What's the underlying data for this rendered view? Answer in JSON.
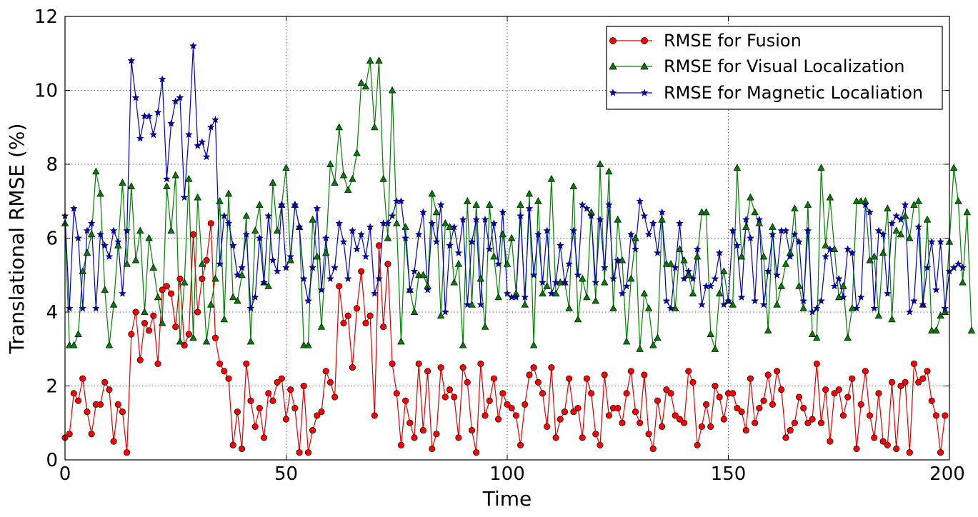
{
  "chart_data": {
    "type": "line",
    "title": "",
    "xlabel": "Time",
    "ylabel": "Translational RMSE (%)",
    "xlim": [
      0,
      200
    ],
    "ylim": [
      0,
      12
    ],
    "x_ticks": [
      0,
      50,
      100,
      150,
      200
    ],
    "y_ticks": [
      0,
      2,
      4,
      6,
      8,
      10,
      12
    ],
    "grid": true,
    "legend_position": "top-right",
    "series": [
      {
        "name": "RMSE for Fusion",
        "color": "#ff0000",
        "line_color": "#dd0000",
        "marker": "circle",
        "values": [
          0.6,
          0.7,
          1.8,
          1.6,
          2.2,
          1.3,
          0.7,
          1.5,
          1.5,
          2.1,
          1.9,
          0.5,
          1.5,
          1.3,
          0.2,
          3.4,
          4.0,
          2.7,
          3.7,
          3.5,
          3.9,
          2.6,
          4.6,
          4.7,
          4.5,
          3.6,
          4.9,
          3.1,
          3.4,
          6.1,
          4.0,
          4.9,
          5.4,
          6.4,
          3.3,
          2.6,
          2.4,
          2.2,
          0.4,
          1.3,
          0.3,
          2.6,
          1.6,
          0.9,
          1.4,
          0.6,
          1.8,
          1.6,
          2.1,
          2.2,
          1.1,
          1.9,
          1.4,
          0.2,
          2.0,
          0.2,
          0.8,
          1.2,
          1.3,
          2.4,
          2.1,
          1.7,
          4.7,
          3.7,
          3.9,
          2.5,
          4.1,
          5.1,
          3.7,
          3.9,
          1.2,
          5.8,
          3.6,
          5.3,
          2.6,
          1.8,
          0.4,
          1.6,
          1.0,
          0.6,
          2.6,
          0.8,
          2.4,
          0.3,
          0.7,
          2.5,
          1.7,
          1.9,
          1.7,
          0.6,
          2.5,
          2.1,
          0.8,
          0.2,
          2.6,
          1.2,
          1.6,
          2.2,
          1.1,
          1.8,
          1.5,
          1.4,
          1.2,
          0.4,
          1.5,
          2.3,
          2.5,
          2.1,
          1.8,
          0.9,
          2.5,
          0.6,
          1.1,
          1.3,
          2.2,
          1.3,
          1.4,
          0.6,
          2.2,
          1.8,
          0.7,
          0.4,
          2.3,
          1.2,
          1.4,
          1.4,
          1.0,
          1.8,
          2.4,
          1.3,
          1.0,
          2.3,
          0.7,
          0.3,
          1.6,
          0.9,
          1.9,
          1.8,
          1.2,
          1.1,
          1.0,
          2.4,
          2.1,
          0.4,
          0.9,
          1.5,
          0.9,
          2.0,
          1.7,
          1.1,
          1.8,
          1.8,
          1.4,
          1.3,
          0.8,
          2.2,
          1.0,
          1.4,
          1.6,
          2.3,
          1.5,
          2.4,
          1.9,
          0.6,
          0.8,
          1.0,
          1.7,
          1.4,
          1.0,
          1.1,
          2.6,
          1.0,
          1.9,
          0.5,
          1.8,
          1.9,
          1.2,
          1.7,
          2.2,
          0.3,
          1.5,
          2.4,
          1.2,
          0.6,
          1.8,
          0.5,
          0.4,
          2.1,
          0.3,
          2.0,
          2.1,
          0.2,
          2.6,
          2.1,
          2.2,
          2.4,
          1.6,
          1.2,
          0.2,
          1.2
        ]
      },
      {
        "name": "RMSE for Visual Localization",
        "color": "#008000",
        "line_color": "#008000",
        "marker": "triangle",
        "values": [
          6.4,
          3.1,
          3.1,
          3.4,
          5.1,
          5.6,
          6.1,
          7.8,
          7.2,
          4.6,
          3.1,
          4.2,
          5.8,
          7.5,
          5.3,
          7.4,
          5.4,
          6.2,
          4.0,
          6.0,
          5.2,
          4.4,
          3.7,
          7.4,
          6.2,
          7.7,
          3.2,
          4.8,
          7.6,
          3.3,
          7.1,
          5.3,
          3.2,
          4.2,
          4.9,
          7.0,
          3.8,
          7.2,
          4.4,
          4.3,
          5.0,
          6.6,
          3.2,
          6.2,
          6.9,
          4.8,
          4.7,
          7.5,
          6.2,
          6.9,
          7.9,
          5.4,
          6.9,
          6.3,
          3.1,
          3.1,
          6.5,
          5.5,
          3.6,
          5.6,
          8.0,
          7.5,
          9.0,
          7.7,
          7.3,
          7.6,
          8.3,
          10.2,
          10.1,
          10.8,
          9.0,
          10.8,
          7.6,
          6.0,
          10.0,
          6.4,
          3.2,
          6.3,
          4.6,
          4.0,
          5.0,
          5.0,
          4.7,
          7.2,
          6.7,
          3.9,
          6.4,
          6.3,
          4.8,
          5.3,
          3.1,
          7.0,
          4.2,
          6.9,
          4.9,
          3.6,
          6.9,
          5.5,
          4.4,
          6.1,
          5.3,
          6.0,
          4.5,
          6.9,
          4.2,
          7.2,
          3.1,
          7.0,
          4.5,
          4.7,
          7.6,
          4.5,
          4.8,
          4.8,
          4.1,
          7.4,
          3.8,
          4.9,
          4.4,
          6.7,
          4.3,
          8.0,
          4.8,
          7.8,
          4.1,
          6.5,
          5.4,
          3.2,
          4.9,
          6.0,
          3.0,
          4.5,
          4.1,
          3.1,
          3.3,
          6.5,
          5.3,
          5.3,
          4.1,
          5.7,
          5.4,
          5.0,
          4.5,
          5.5,
          6.7,
          6.7,
          3.4,
          3.0,
          4.5,
          5.1,
          4.3,
          4.2,
          7.9,
          5.5,
          6.3,
          7.1,
          6.7,
          6.4,
          5.5,
          3.5,
          6.3,
          4.2,
          4.7,
          5.3,
          5.6,
          6.8,
          4.7,
          4.1,
          6.9,
          3.4,
          3.3,
          7.9,
          5.8,
          7.1,
          5.7,
          4.4,
          4.7,
          3.3,
          4.1,
          7.0,
          7.0,
          7.0,
          5.4,
          5.5,
          3.9,
          5.6,
          6.8,
          3.8,
          6.2,
          6.1,
          6.6,
          6.0,
          6.9,
          7.0,
          4.2,
          6.5,
          3.5,
          3.5,
          3.9,
          4.0,
          5.9,
          7.9,
          7.0,
          4.8,
          6.7,
          3.5
        ]
      },
      {
        "name": "RMSE for Magnetic Localiation",
        "color": "#0000cc",
        "line_color": "#0000cc",
        "marker": "star",
        "values": [
          6.6,
          4.1,
          6.8,
          6.0,
          4.1,
          6.2,
          6.4,
          4.1,
          6.1,
          5.8,
          5.5,
          6.2,
          5.9,
          4.5,
          6.2,
          10.8,
          9.8,
          8.7,
          9.3,
          9.3,
          8.8,
          9.4,
          10.3,
          7.6,
          9.1,
          9.7,
          9.8,
          7.1,
          8.8,
          11.2,
          8.5,
          8.6,
          8.2,
          9.0,
          9.2,
          5.3,
          6.6,
          6.4,
          5.8,
          5.0,
          5.2,
          6.1,
          4.1,
          4.4,
          6.0,
          4.8,
          6.6,
          5.4,
          5.1,
          6.9,
          5.2,
          5.5,
          6.9,
          6.3,
          4.9,
          4.3,
          5.2,
          6.8,
          4.6,
          6.0,
          4.9,
          5.2,
          6.4,
          5.9,
          4.9,
          6.2,
          5.7,
          6.1,
          5.5,
          6.3,
          4.5,
          4.9,
          6.4,
          6.4,
          6.6,
          7.0,
          7.0,
          6.0,
          4.6,
          5.1,
          6.1,
          6.7,
          4.6,
          6.4,
          5.9,
          6.9,
          4.0,
          5.8,
          6.3,
          5.6,
          6.5,
          4.2,
          5.9,
          6.5,
          4.2,
          6.5,
          5.7,
          6.4,
          5.3,
          6.7,
          4.5,
          4.4,
          4.4,
          6.6,
          4.4,
          6.8,
          5.0,
          6.1,
          4.8,
          6.2,
          4.5,
          4.8,
          5.8,
          4.8,
          5.3,
          6.2,
          5.0,
          6.9,
          6.8,
          6.6,
          4.8,
          6.5,
          5.2,
          6.9,
          4.9,
          5.4,
          4.5,
          4.7,
          6.1,
          5.7,
          7.0,
          6.6,
          6.1,
          6.4,
          5.6,
          6.7,
          4.3,
          4.1,
          5.2,
          6.4,
          4.9,
          5.1,
          4.9,
          5.7,
          4.2,
          4.7,
          4.7,
          4.9,
          5.6,
          4.2,
          4.3,
          6.2,
          5.8,
          4.4,
          6.5,
          6.0,
          4.3,
          6.5,
          4.2,
          5.1,
          6.1,
          5.0,
          6.2,
          6.2,
          5.5,
          6.1,
          5.9,
          4.3,
          6.2,
          4.0,
          4.1,
          4.3,
          5.5,
          5.7,
          4.7,
          4.9,
          4.4,
          5.7,
          5.6,
          4.1,
          4.4,
          6.9,
          6.7,
          4.1,
          6.2,
          6.1,
          4.5,
          6.4,
          6.6,
          6.5,
          6.9,
          4.0,
          4.3,
          6.3,
          4.2,
          5.2,
          5.9,
          4.6,
          5.9,
          4.1,
          5.1,
          5.2,
          5.3,
          5.2
        ]
      }
    ]
  }
}
